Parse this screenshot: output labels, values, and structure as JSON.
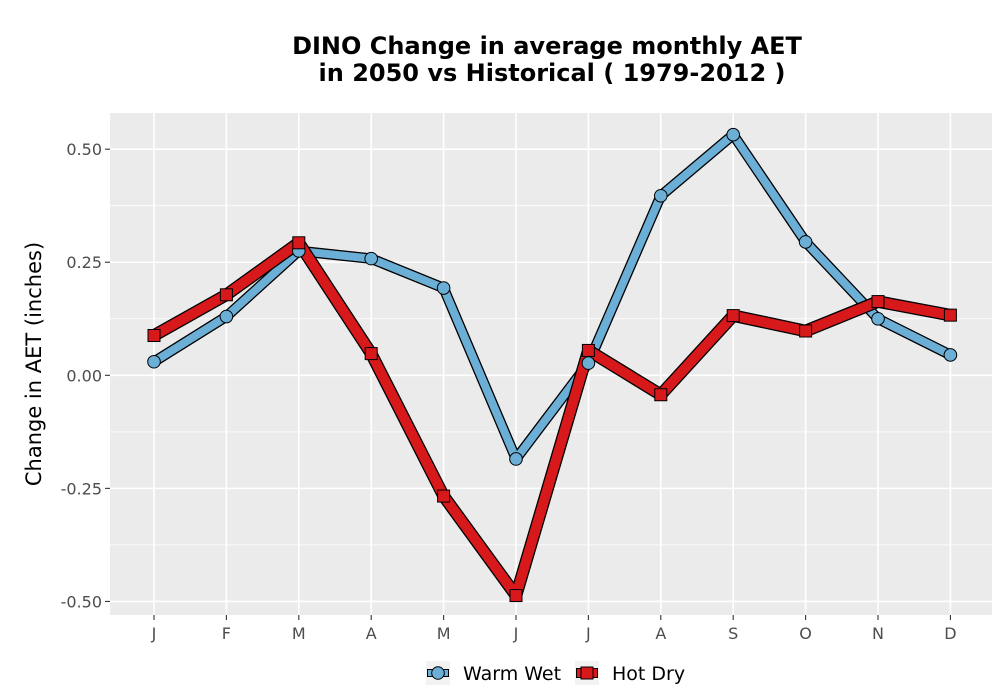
{
  "chart_data": {
    "type": "line",
    "title_line1": "DINO  Change in average monthly AET",
    "title_line2": "in 2050 vs Historical ( 1979-2012 )",
    "xlabel": "",
    "ylabel": "Change in AET (inches)",
    "categories": [
      "J",
      "F",
      "M",
      "A",
      "M",
      "J",
      "J",
      "A",
      "S",
      "O",
      "N",
      "D"
    ],
    "ylim": [
      -0.53,
      0.58
    ],
    "yticks": [
      -0.5,
      -0.25,
      0.0,
      0.25,
      0.5
    ],
    "ytick_labels": [
      "-0.50",
      "-0.25",
      "0.00",
      "0.25",
      "0.50"
    ],
    "grid": true,
    "legend_position": "bottom",
    "series": [
      {
        "name": "Warm Wet",
        "color": "#6baed6",
        "marker": "circle",
        "values": [
          0.03,
          0.13,
          0.275,
          0.258,
          0.193,
          -0.185,
          0.027,
          0.397,
          0.532,
          0.295,
          0.125,
          0.045
        ]
      },
      {
        "name": "Hot Dry",
        "color": "#d7191c",
        "marker": "square",
        "values": [
          0.088,
          0.178,
          0.293,
          0.048,
          -0.267,
          -0.487,
          0.055,
          -0.043,
          0.132,
          0.098,
          0.163,
          0.133
        ]
      }
    ]
  }
}
